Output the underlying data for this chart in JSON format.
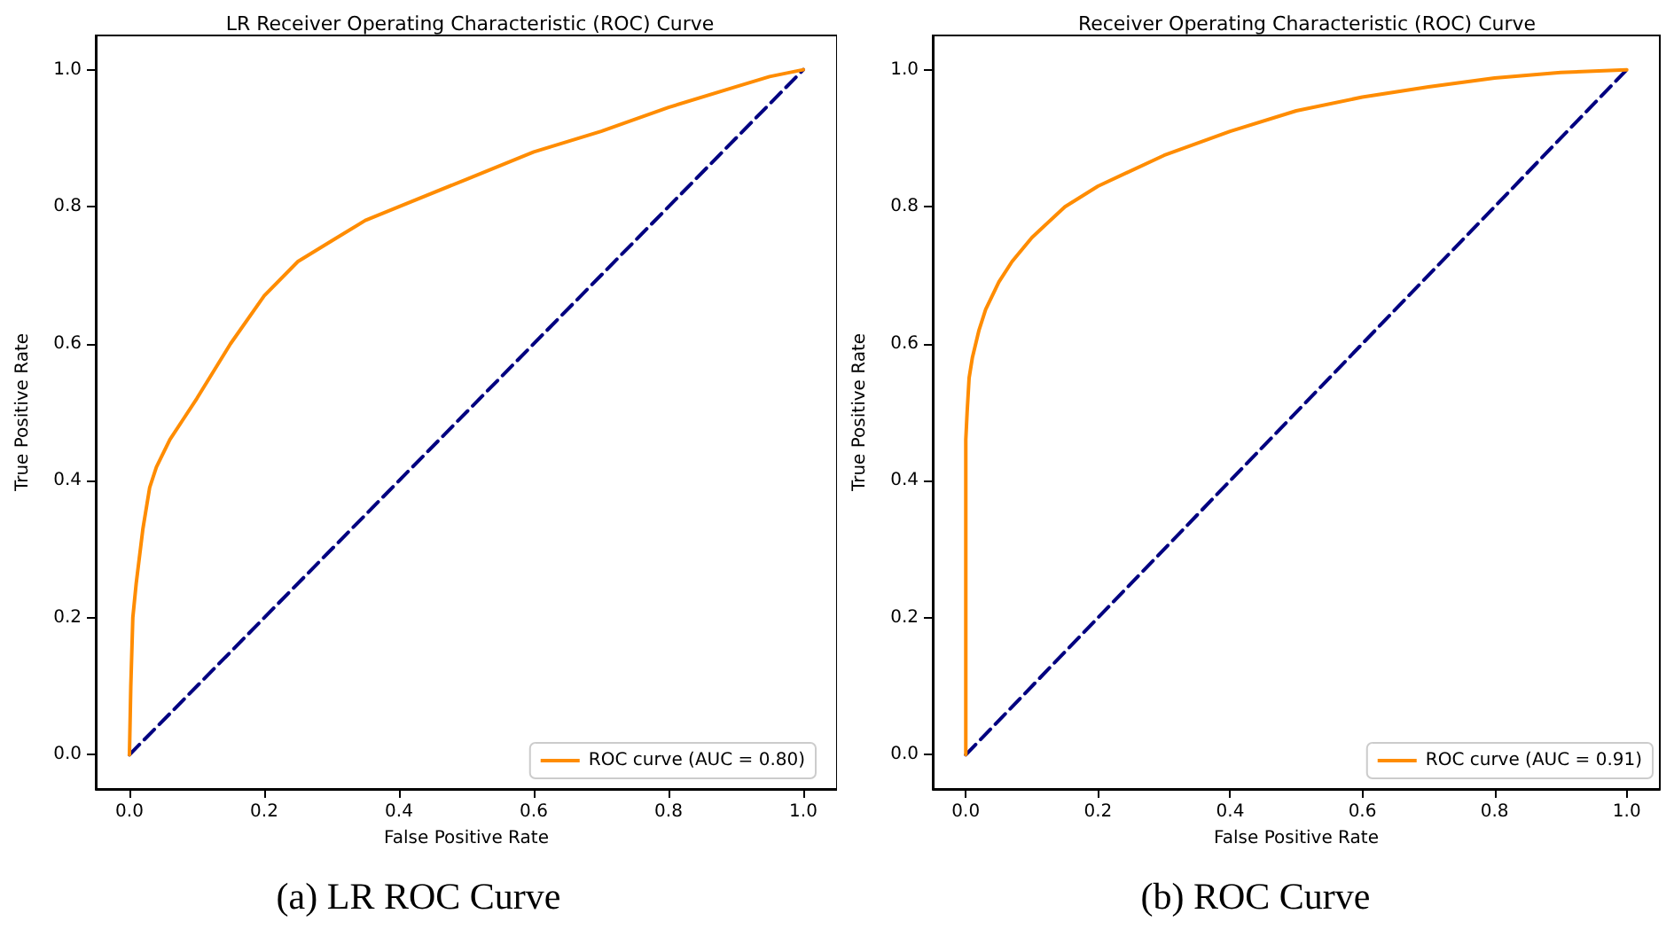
{
  "chart_data": [
    {
      "type": "line",
      "title": "LR Receiver Operating Characteristic (ROC) Curve",
      "xlabel": "False Positive Rate",
      "ylabel": "True Positive Rate",
      "annotations": [
        "(a) LR ROC Curve"
      ],
      "xlim": [
        -0.05,
        1.05
      ],
      "ylim": [
        -0.05,
        1.05
      ],
      "xticks": [
        {
          "value": 0,
          "label": "0.0"
        },
        {
          "value": 0.2,
          "label": "0.2"
        },
        {
          "value": 0.4,
          "label": "0.4"
        },
        {
          "value": 0.6,
          "label": "0.6"
        },
        {
          "value": 0.8,
          "label": "0.8"
        },
        {
          "value": 1,
          "label": "1.0"
        }
      ],
      "yticks": [
        {
          "value": 0,
          "label": "0.0"
        },
        {
          "value": 0.2,
          "label": "0.2"
        },
        {
          "value": 0.4,
          "label": "0.4"
        },
        {
          "value": 0.6,
          "label": "0.6"
        },
        {
          "value": 0.8,
          "label": "0.8"
        },
        {
          "value": 1,
          "label": "1.0"
        }
      ],
      "grid": false,
      "legend": "bottom right",
      "marker": "none",
      "series": [
        {
          "name": "ROC curve (AUC = 0.80)",
          "color": "#ff8c00",
          "line_style": "solid",
          "x": [
            0,
            0.002,
            0.005,
            0.01,
            0.02,
            0.03,
            0.04,
            0.06,
            0.08,
            0.1,
            0.15,
            0.2,
            0.25,
            0.3,
            0.35,
            0.4,
            0.5,
            0.6,
            0.7,
            0.8,
            0.9,
            0.95,
            1
          ],
          "values": [
            0,
            0.1,
            0.2,
            0.25,
            0.33,
            0.39,
            0.42,
            0.46,
            0.49,
            0.52,
            0.6,
            0.67,
            0.72,
            0.75,
            0.78,
            0.8,
            0.84,
            0.88,
            0.91,
            0.945,
            0.975,
            0.99,
            1
          ]
        },
        {
          "color": "#000080",
          "line_style": "dashed",
          "x": [
            0,
            1
          ],
          "values": [
            0,
            1
          ]
        }
      ]
    },
    {
      "type": "line",
      "title": "Receiver Operating Characteristic (ROC) Curve",
      "xlabel": "False Positive Rate",
      "ylabel": "True Positive Rate",
      "annotations": [
        "(b) ROC Curve"
      ],
      "xlim": [
        -0.05,
        1.05
      ],
      "ylim": [
        -0.05,
        1.05
      ],
      "xticks": [
        {
          "value": 0,
          "label": "0.0"
        },
        {
          "value": 0.2,
          "label": "0.2"
        },
        {
          "value": 0.4,
          "label": "0.4"
        },
        {
          "value": 0.6,
          "label": "0.6"
        },
        {
          "value": 0.8,
          "label": "0.8"
        },
        {
          "value": 1,
          "label": "1.0"
        }
      ],
      "yticks": [
        {
          "value": 0,
          "label": "0.0"
        },
        {
          "value": 0.2,
          "label": "0.2"
        },
        {
          "value": 0.4,
          "label": "0.4"
        },
        {
          "value": 0.6,
          "label": "0.6"
        },
        {
          "value": 0.8,
          "label": "0.8"
        },
        {
          "value": 1,
          "label": "1.0"
        }
      ],
      "grid": false,
      "legend": "bottom right",
      "marker": "none",
      "series": [
        {
          "name": "ROC curve (AUC = 0.91)",
          "color": "#ff8c00",
          "line_style": "solid",
          "x": [
            0,
            0,
            0.002,
            0.005,
            0.01,
            0.02,
            0.03,
            0.05,
            0.07,
            0.1,
            0.15,
            0.2,
            0.3,
            0.4,
            0.5,
            0.6,
            0.7,
            0.8,
            0.9,
            1
          ],
          "values": [
            0,
            0.46,
            0.5,
            0.55,
            0.58,
            0.62,
            0.65,
            0.69,
            0.72,
            0.755,
            0.8,
            0.83,
            0.875,
            0.91,
            0.94,
            0.96,
            0.975,
            0.988,
            0.996,
            1
          ]
        },
        {
          "color": "#000080",
          "line_style": "dashed",
          "x": [
            0,
            1
          ],
          "values": [
            0,
            1
          ]
        }
      ]
    }
  ]
}
